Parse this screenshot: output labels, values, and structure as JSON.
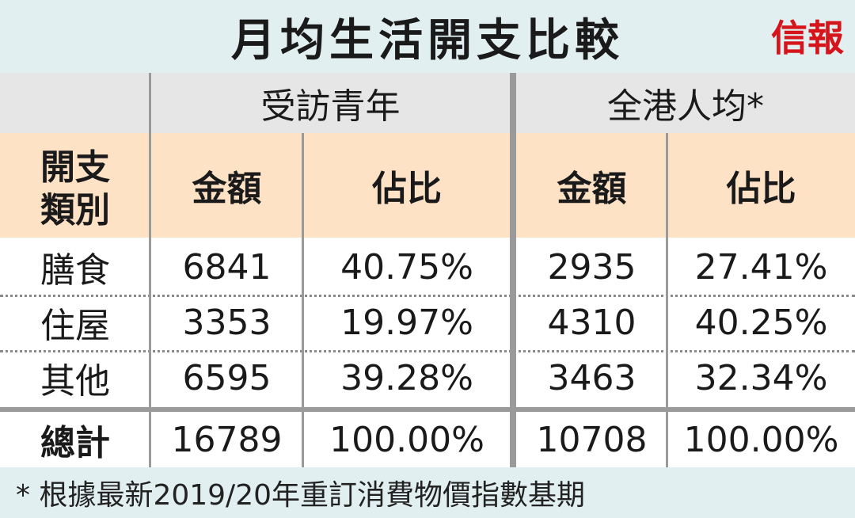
{
  "header": {
    "title": "月均生活開支比較",
    "logo": "信報"
  },
  "table": {
    "groups": [
      "受訪青年",
      "全港人均*"
    ],
    "category_header": [
      "開支",
      "類別"
    ],
    "columns": [
      "金額",
      "佔比",
      "金額",
      "佔比"
    ],
    "rows": [
      [
        "膳食",
        "6841",
        "40.75%",
        "2935",
        "27.41%"
      ],
      [
        "住屋",
        "3353",
        "19.97%",
        "4310",
        "40.25%"
      ],
      [
        "其他",
        "6595",
        "39.28%",
        "3463",
        "32.34%"
      ]
    ],
    "total": [
      "總計",
      "16789",
      "100.00%",
      "10708",
      "100.00%"
    ]
  },
  "footnote": "* 根據最新2019/20年重訂消費物價指數基期"
}
